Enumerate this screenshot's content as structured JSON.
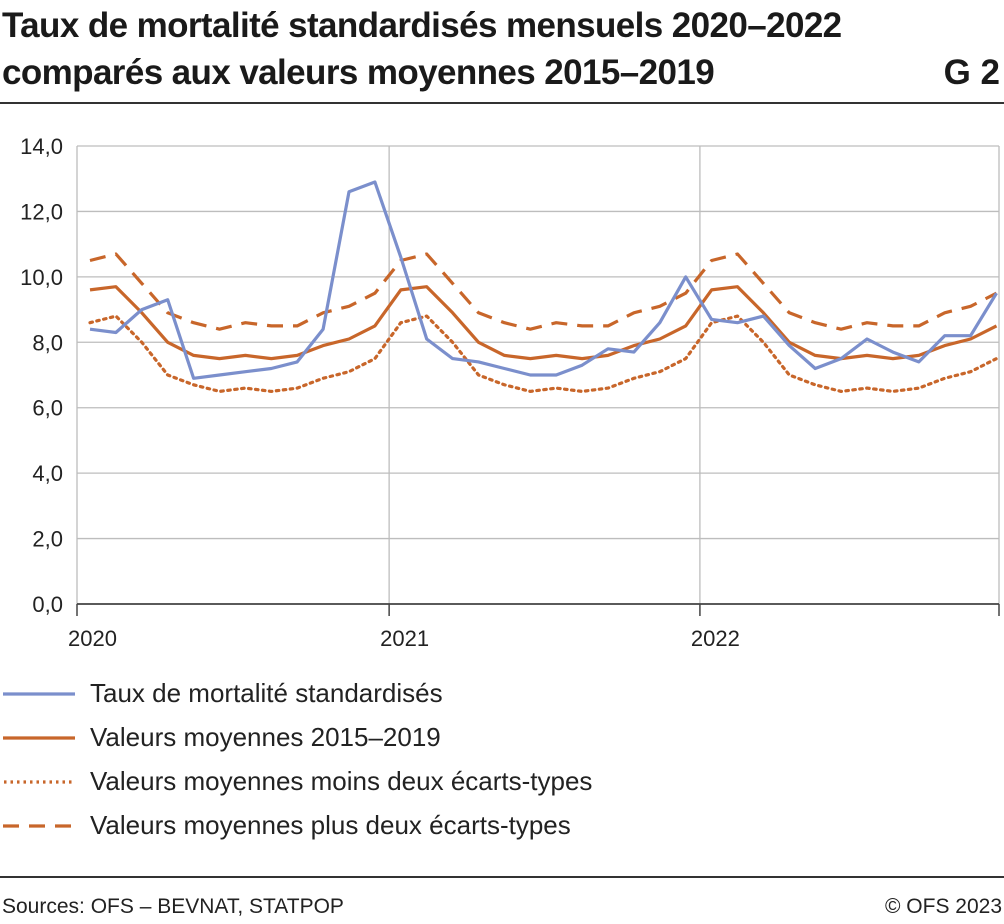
{
  "header": {
    "title": "Taux de mortalité standardisés mensuels 2020–2022 comparés aux valeurs moyennes 2015–2019",
    "figure_id": "G 2"
  },
  "footer": {
    "source": "Sources: OFS – BEVNAT, STATPOP",
    "copyright": "© OFS 2023"
  },
  "colors": {
    "taux": "#7b8fcc",
    "moyenne": "#c8662a",
    "grid": "#bdbdbd",
    "axis": "#444444"
  },
  "chart_data": {
    "type": "line",
    "title": "Taux de mortalité standardisés mensuels 2020–2022 comparés aux valeurs moyennes 2015–2019",
    "xlabel": "",
    "ylabel": "",
    "ylim": [
      0,
      14
    ],
    "yticks": [
      "0,0",
      "2,0",
      "4,0",
      "6,0",
      "8,0",
      "10,0",
      "12,0",
      "14,0"
    ],
    "xticks": [
      "2020",
      "2021",
      "2022"
    ],
    "grid": true,
    "legend_position": "bottom",
    "x": [
      "2020-01",
      "2020-02",
      "2020-03",
      "2020-04",
      "2020-05",
      "2020-06",
      "2020-07",
      "2020-08",
      "2020-09",
      "2020-10",
      "2020-11",
      "2020-12",
      "2021-01",
      "2021-02",
      "2021-03",
      "2021-04",
      "2021-05",
      "2021-06",
      "2021-07",
      "2021-08",
      "2021-09",
      "2021-10",
      "2021-11",
      "2021-12",
      "2022-01",
      "2022-02",
      "2022-03",
      "2022-04",
      "2022-05",
      "2022-06",
      "2022-07",
      "2022-08",
      "2022-09",
      "2022-10",
      "2022-11",
      "2022-12"
    ],
    "series": [
      {
        "name": "Taux de mortalité standardisés",
        "style": "solid",
        "color": "#7b8fcc",
        "values": [
          8.4,
          8.3,
          9.0,
          9.3,
          6.9,
          7.0,
          7.1,
          7.2,
          7.4,
          8.4,
          12.6,
          12.9,
          10.6,
          8.1,
          7.5,
          7.4,
          7.2,
          7.0,
          7.0,
          7.3,
          7.8,
          7.7,
          8.6,
          10.0,
          8.7,
          8.6,
          8.8,
          7.9,
          7.2,
          7.5,
          8.1,
          7.7,
          7.4,
          8.2,
          8.2,
          9.5
        ]
      },
      {
        "name": "Valeurs moyennes 2015–2019",
        "style": "solid",
        "color": "#c8662a",
        "values": [
          9.6,
          9.7,
          8.9,
          8.0,
          7.6,
          7.5,
          7.6,
          7.5,
          7.6,
          7.9,
          8.1,
          8.5,
          9.6,
          9.7,
          8.9,
          8.0,
          7.6,
          7.5,
          7.6,
          7.5,
          7.6,
          7.9,
          8.1,
          8.5,
          9.6,
          9.7,
          8.9,
          8.0,
          7.6,
          7.5,
          7.6,
          7.5,
          7.6,
          7.9,
          8.1,
          8.5
        ]
      },
      {
        "name": "Valeurs moyennes moins deux écarts-types",
        "style": "dotted",
        "color": "#c8662a",
        "values": [
          8.6,
          8.8,
          8.0,
          7.0,
          6.7,
          6.5,
          6.6,
          6.5,
          6.6,
          6.9,
          7.1,
          7.5,
          8.6,
          8.8,
          8.0,
          7.0,
          6.7,
          6.5,
          6.6,
          6.5,
          6.6,
          6.9,
          7.1,
          7.5,
          8.6,
          8.8,
          8.0,
          7.0,
          6.7,
          6.5,
          6.6,
          6.5,
          6.6,
          6.9,
          7.1,
          7.5
        ]
      },
      {
        "name": "Valeurs moyennes plus deux écarts-types",
        "style": "dashed",
        "color": "#c8662a",
        "values": [
          10.5,
          10.7,
          9.8,
          8.9,
          8.6,
          8.4,
          8.6,
          8.5,
          8.5,
          8.9,
          9.1,
          9.5,
          10.5,
          10.7,
          9.8,
          8.9,
          8.6,
          8.4,
          8.6,
          8.5,
          8.5,
          8.9,
          9.1,
          9.5,
          10.5,
          10.7,
          9.8,
          8.9,
          8.6,
          8.4,
          8.6,
          8.5,
          8.5,
          8.9,
          9.1,
          9.5
        ]
      }
    ]
  }
}
